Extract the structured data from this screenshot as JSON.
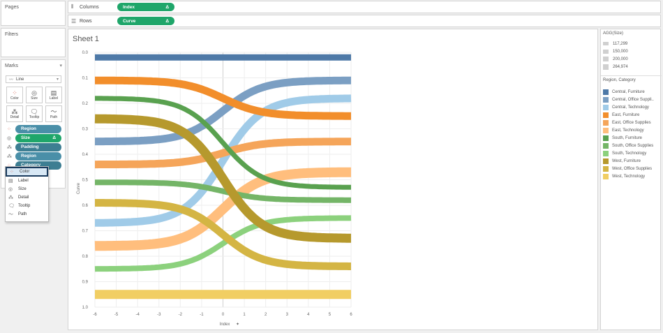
{
  "panels": {
    "pages": "Pages",
    "filters": "Filters",
    "marks": "Marks"
  },
  "shelves": {
    "columns_label": "Columns",
    "rows_label": "Rows",
    "columns_pill": "Index",
    "rows_pill": "Curve",
    "delta": "Δ"
  },
  "marks_card": {
    "mark_type": "Line",
    "buttons": [
      "Color",
      "Size",
      "Label",
      "Detail",
      "Tooltip",
      "Path"
    ],
    "fields": [
      {
        "icon": "color-icon",
        "label": "Region",
        "style": "blue"
      },
      {
        "icon": "size-icon",
        "label": "Size",
        "style": "green",
        "delta": "Δ"
      },
      {
        "icon": "detail-icon",
        "label": "Padding",
        "style": "teal"
      },
      {
        "icon": "detail-icon",
        "label": "Region",
        "style": "blue"
      },
      {
        "icon": "color-icon",
        "label": "Category",
        "style": "teal"
      }
    ]
  },
  "dropdown": {
    "items": [
      "Color",
      "Label",
      "Size",
      "Detail",
      "Tooltip",
      "Path"
    ],
    "selected": "Color"
  },
  "sheet": {
    "title": "Sheet 1"
  },
  "size_legend": {
    "title": "AGG(Size)",
    "items": [
      "117,299",
      "150,000",
      "200,000",
      "264,974"
    ]
  },
  "color_legend": {
    "title": "Region, Category",
    "items": [
      {
        "label": "Central, Furniture",
        "color": "#4e79a7"
      },
      {
        "label": "Central, Office Suppli..",
        "color": "#7b9fc3"
      },
      {
        "label": "Central, Technology",
        "color": "#a0cbe8"
      },
      {
        "label": "East, Furniture",
        "color": "#f28e2b"
      },
      {
        "label": "East, Office Supplies",
        "color": "#f5a55a"
      },
      {
        "label": "East, Technology",
        "color": "#ffbe7d"
      },
      {
        "label": "South, Furniture",
        "color": "#59a14f"
      },
      {
        "label": "South, Office Supplies",
        "color": "#74b567"
      },
      {
        "label": "South, Technology",
        "color": "#8cd17d"
      },
      {
        "label": "West, Furniture",
        "color": "#b6992d"
      },
      {
        "label": "West, Office Supplies",
        "color": "#d4b544"
      },
      {
        "label": "West, Technology",
        "color": "#f1ce63"
      }
    ]
  },
  "chart_data": {
    "type": "line",
    "xlabel": "Index",
    "ylabel": "Curve",
    "xlim": [
      -6,
      6
    ],
    "ylim": [
      0.0,
      1.0
    ],
    "y_reversed": true,
    "x_ticks": [
      "-6",
      "-5",
      "-4",
      "-3",
      "-2",
      "-1",
      "0",
      "1",
      "2",
      "3",
      "4",
      "5",
      "6"
    ],
    "y_ticks": [
      "0.0",
      "0.1",
      "0.2",
      "0.3",
      "0.4",
      "0.5",
      "0.6",
      "0.7",
      "0.8",
      "0.9",
      "1.0"
    ],
    "series": [
      {
        "name": "Central, Furniture",
        "start": 0.02,
        "end": 0.02,
        "color": "#4e79a7",
        "width": 9
      },
      {
        "name": "Central, Office Suppli..",
        "start": 0.35,
        "end": 0.11,
        "color": "#7b9fc3",
        "width": 11
      },
      {
        "name": "Central, Technology",
        "start": 0.67,
        "end": 0.18,
        "color": "#a0cbe8",
        "width": 11
      },
      {
        "name": "East, Furniture",
        "start": 0.11,
        "end": 0.25,
        "color": "#f28e2b",
        "width": 11
      },
      {
        "name": "East, Office Supplies",
        "start": 0.44,
        "end": 0.35,
        "color": "#f5a55a",
        "width": 11
      },
      {
        "name": "East, Technology",
        "start": 0.76,
        "end": 0.47,
        "color": "#ffbe7d",
        "width": 14
      },
      {
        "name": "South, Furniture",
        "start": 0.18,
        "end": 0.53,
        "color": "#59a14f",
        "width": 7
      },
      {
        "name": "South, Office Supplies",
        "start": 0.51,
        "end": 0.58,
        "color": "#74b567",
        "width": 8
      },
      {
        "name": "South, Technology",
        "start": 0.85,
        "end": 0.65,
        "color": "#8cd17d",
        "width": 8
      },
      {
        "name": "West, Furniture",
        "start": 0.26,
        "end": 0.73,
        "color": "#b6992d",
        "width": 13
      },
      {
        "name": "West, Office Supplies",
        "start": 0.59,
        "end": 0.84,
        "color": "#d4b544",
        "width": 11
      },
      {
        "name": "West, Technology",
        "start": 0.95,
        "end": 0.95,
        "color": "#f1ce63",
        "width": 13
      }
    ]
  }
}
